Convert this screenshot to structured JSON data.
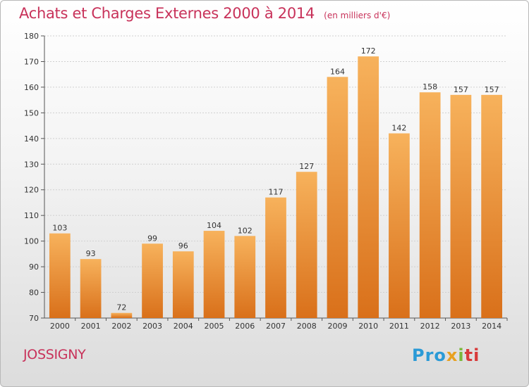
{
  "title": "Achats et Charges Externes 2000 à 2014",
  "subtitle": "(en milliers d'€)",
  "commune": "JOSSIGNY",
  "logo": {
    "text": "Proxiti",
    "colors": [
      "#2a9ad6",
      "#e8a020",
      "#7ab83a",
      "#d83a3a"
    ]
  },
  "colors": {
    "bar_light": "#f7b25c",
    "bar_dark": "#d9701a",
    "title": "#c8325a"
  },
  "chart_data": {
    "type": "bar",
    "categories": [
      "2000",
      "2001",
      "2002",
      "2003",
      "2004",
      "2005",
      "2006",
      "2007",
      "2008",
      "2009",
      "2010",
      "2011",
      "2012",
      "2013",
      "2014"
    ],
    "values": [
      103,
      93,
      72,
      99,
      96,
      104,
      102,
      117,
      127,
      164,
      172,
      142,
      158,
      157,
      157
    ],
    "ylim": [
      70,
      180
    ],
    "yticks": [
      70,
      80,
      90,
      100,
      110,
      120,
      130,
      140,
      150,
      160,
      170,
      180
    ],
    "grid": true,
    "title": "Achats et Charges Externes 2000 à 2014",
    "xlabel": "",
    "ylabel": ""
  }
}
